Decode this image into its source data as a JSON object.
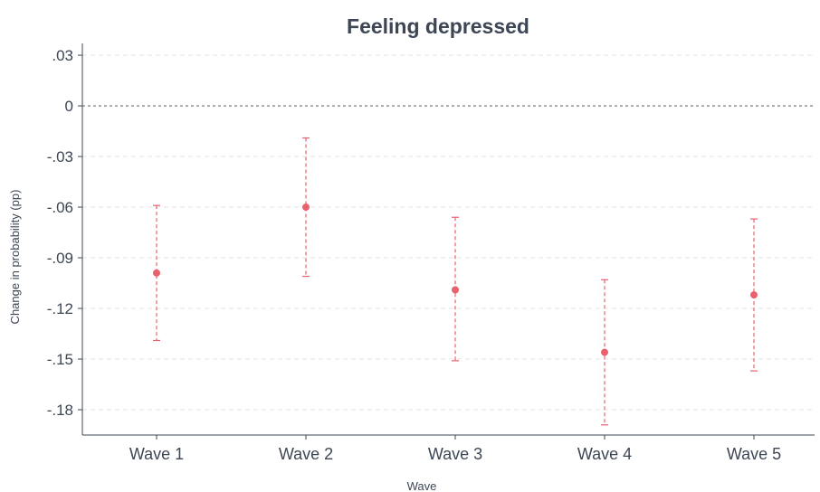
{
  "chart_data": {
    "type": "scatter",
    "title": "Feeling depressed",
    "xlabel": "Wave",
    "ylabel": "Change in probability (pp)",
    "categories": [
      "Wave 1",
      "Wave 2",
      "Wave 3",
      "Wave 4",
      "Wave 5"
    ],
    "series": [
      {
        "estimate": [
          -0.099,
          -0.06,
          -0.109,
          -0.146,
          -0.112
        ],
        "ci_low": [
          -0.139,
          -0.101,
          -0.151,
          -0.189,
          -0.157
        ],
        "ci_high": [
          -0.059,
          -0.019,
          -0.066,
          -0.103,
          -0.067
        ]
      }
    ],
    "ylim": [
      -0.195,
      0.037
    ],
    "y_ticks": [
      0.03,
      0,
      -0.03,
      -0.06,
      -0.09,
      -0.12,
      -0.15,
      -0.18
    ],
    "y_tick_labels": [
      ".03",
      "0",
      "-.03",
      "-.06",
      "-.09",
      "-.12",
      "-.15",
      "-.18"
    ],
    "reference_line": 0,
    "grid": true,
    "colors": {
      "marker": "#e8616d",
      "ci": "#e8616d",
      "text": "#3d4654"
    }
  }
}
